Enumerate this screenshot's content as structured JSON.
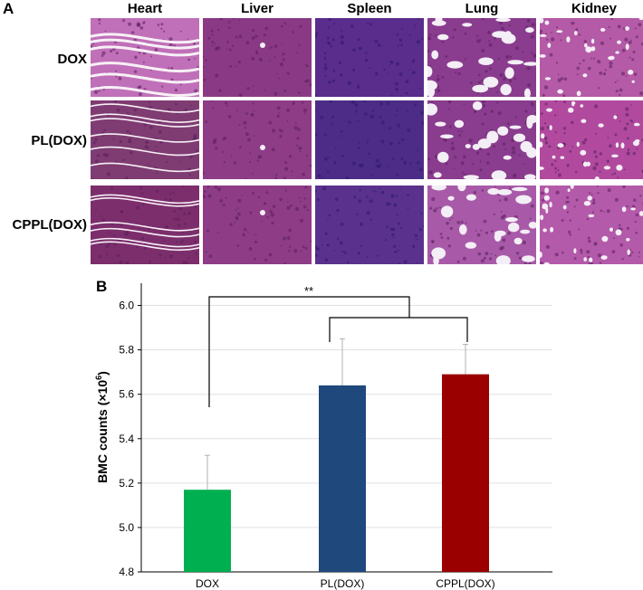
{
  "panel_a": {
    "label": "A",
    "columns": [
      "Heart",
      "Liver",
      "Spleen",
      "Lung",
      "Kidney"
    ],
    "rows": [
      "DOX",
      "PL(DOX)",
      "CPPL(DOX)"
    ]
  },
  "panel_b": {
    "label": "B"
  },
  "chart_data": {
    "type": "bar",
    "categories": [
      "DOX",
      "PL(DOX)",
      "CPPL(DOX)"
    ],
    "values": [
      5.17,
      5.64,
      5.69
    ],
    "errors": [
      0.155,
      0.21,
      0.135
    ],
    "colors": [
      "#00b050",
      "#1f497d",
      "#9b0000"
    ],
    "ylabel": "BMC counts (×10",
    "ylabel_exp": "6",
    "ylabel_close": ")",
    "ylim": [
      4.8,
      6.1
    ],
    "yticks": [
      "4.8",
      "5.0",
      "5.2",
      "5.4",
      "5.6",
      "5.8",
      "6.0"
    ],
    "grid": true,
    "significance": "**"
  }
}
